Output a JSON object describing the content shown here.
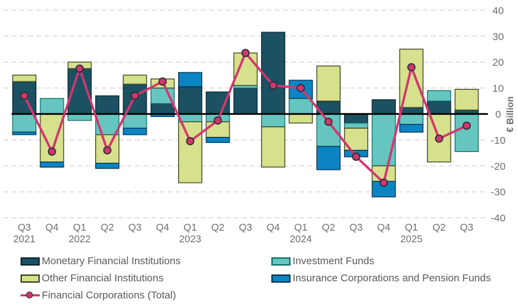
{
  "chart_data": {
    "type": "combo-stacked-bar-line",
    "title": "",
    "xlabel": "",
    "ylabel": "€ Billion",
    "ylim": [
      -40,
      40
    ],
    "ytick_interval": 10,
    "yticks": [
      40,
      30,
      20,
      10,
      0,
      -10,
      -20,
      -30,
      -40
    ],
    "grid": "dashed-horizontal",
    "legend_position": "bottom",
    "values_unit": "EUR billion",
    "categories": [
      {
        "quarter": "Q3",
        "year": "2021"
      },
      {
        "quarter": "Q4",
        "year": ""
      },
      {
        "quarter": "Q1",
        "year": "2022"
      },
      {
        "quarter": "Q2",
        "year": ""
      },
      {
        "quarter": "Q3",
        "year": ""
      },
      {
        "quarter": "Q4",
        "year": ""
      },
      {
        "quarter": "Q1",
        "year": "2023"
      },
      {
        "quarter": "Q2",
        "year": ""
      },
      {
        "quarter": "Q3",
        "year": ""
      },
      {
        "quarter": "Q4",
        "year": ""
      },
      {
        "quarter": "Q1",
        "year": "2024"
      },
      {
        "quarter": "Q2",
        "year": ""
      },
      {
        "quarter": "Q3",
        "year": ""
      },
      {
        "quarter": "Q4",
        "year": ""
      },
      {
        "quarter": "Q1",
        "year": "2025"
      },
      {
        "quarter": "Q2",
        "year": ""
      },
      {
        "quarter": "Q3",
        "year": ""
      }
    ],
    "bar_series": [
      {
        "name": "Monetary Financial Institutions",
        "color": "#1b5162",
        "border": "#0c2733",
        "values": [
          12.5,
          0,
          17.5,
          7,
          11.5,
          4,
          10.5,
          8.5,
          10,
          31.5,
          0,
          5,
          -3.5,
          5.5,
          2.5,
          5,
          1.5
        ]
      },
      {
        "name": "Investment Funds",
        "color": "#65c6bf",
        "border": "#0e6f6e",
        "values": [
          -7,
          6,
          -2.5,
          -8,
          -5.5,
          6,
          -3,
          -3,
          1,
          -5,
          6,
          -12.5,
          -2,
          -20,
          -4,
          4,
          -14.5
        ]
      },
      {
        "name": "Other Financial Institutions",
        "color": "#d6e08d",
        "border": "#3e431c",
        "values": [
          2.5,
          -18.5,
          2.5,
          -11,
          3.5,
          3.5,
          -23.5,
          -6,
          12.5,
          -15.5,
          -3.5,
          13.5,
          -8.5,
          -6,
          22.5,
          -18.5,
          8
        ]
      },
      {
        "name": "Insurance Corporations and Pension Funds",
        "color": "#0b84c4",
        "border": "#05344a",
        "values": [
          -1,
          -2,
          0,
          -2,
          -2.5,
          -1,
          5.5,
          -2,
          0,
          0,
          7,
          -9,
          -2.5,
          -6,
          -3,
          0,
          0
        ]
      }
    ],
    "line_series": {
      "name": "Financial Corporations (Total)",
      "color": "#d2366e",
      "marker_border": "#2b2b33",
      "values": [
        7,
        -14.5,
        17.5,
        -14,
        7,
        12.5,
        -10.5,
        -2.5,
        23.5,
        11,
        10,
        -3,
        -16.5,
        -26.5,
        18,
        -9.5,
        -4.5
      ]
    },
    "colors": {
      "grid": "#cbcbcb",
      "zero_line": "#000000",
      "axis_text": "#6e6e6e",
      "legend_text": "#595959",
      "background": "#ffffff"
    }
  }
}
